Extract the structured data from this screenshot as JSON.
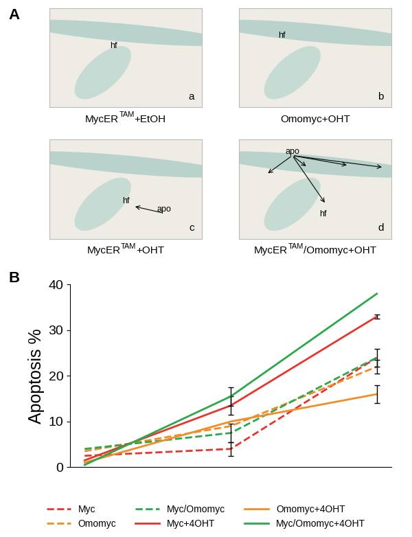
{
  "panel_labels": [
    "A",
    "B"
  ],
  "images": [
    {
      "letter": "a",
      "caption": [
        {
          "text": "MycER"
        },
        {
          "text": "TAM",
          "sup": true
        },
        {
          "text": "+EtOH"
        }
      ],
      "marks": [
        "hf"
      ]
    },
    {
      "letter": "b",
      "caption": [
        {
          "text": "Omomyc+OHT"
        }
      ],
      "marks": [
        "hf"
      ]
    },
    {
      "letter": "c",
      "caption": [
        {
          "text": "MycER"
        },
        {
          "text": "TAM",
          "sup": true
        },
        {
          "text": "+OHT"
        }
      ],
      "marks": [
        "hf",
        "apo"
      ]
    },
    {
      "letter": "d",
      "caption": [
        {
          "text": "MycER"
        },
        {
          "text": "TAM",
          "sup": true
        },
        {
          "text": "/Omomyc+OHT"
        }
      ],
      "marks": [
        "apo",
        "hf"
      ]
    }
  ],
  "chart_data": {
    "type": "line",
    "y_label": "Apoptosis %",
    "categories": [
      null,
      null,
      null
    ],
    "ylim": [
      0,
      40
    ],
    "yticks": [
      0,
      10,
      20,
      30,
      40
    ],
    "tick_labels": "y",
    "legend": "lower center",
    "series": [
      {
        "name": "Myc",
        "color": "#e8342a",
        "line_style": "dashed",
        "values": [
          2.5,
          4,
          24
        ],
        "errors": [
          null,
          1.5,
          null
        ]
      },
      {
        "name": "Omomyc",
        "color": "#f28c28",
        "line_style": "dashed",
        "values": [
          3.5,
          9,
          22
        ],
        "errors": [
          null,
          null,
          1.5
        ]
      },
      {
        "name": "Myc/Omomyc",
        "color": "#2aa84a",
        "line_style": "dashed",
        "values": [
          4,
          7.5,
          24
        ],
        "errors": [
          null,
          2,
          2
        ]
      },
      {
        "name": "Myc+4OHT",
        "color": "#e8342a",
        "line_style": "solid",
        "values": [
          1.5,
          13.5,
          33
        ],
        "errors": [
          null,
          2,
          0.5
        ]
      },
      {
        "name": "Omomyc+4OHT",
        "color": "#f28c28",
        "line_style": "solid",
        "values": [
          1,
          10,
          16
        ],
        "errors": [
          null,
          null,
          2
        ]
      },
      {
        "name": "Myc/Omomyc+4OHT",
        "color": "#2aa84a",
        "line_style": "solid",
        "values": [
          0.5,
          15.5,
          38
        ],
        "errors": [
          null,
          2,
          null
        ]
      }
    ]
  }
}
